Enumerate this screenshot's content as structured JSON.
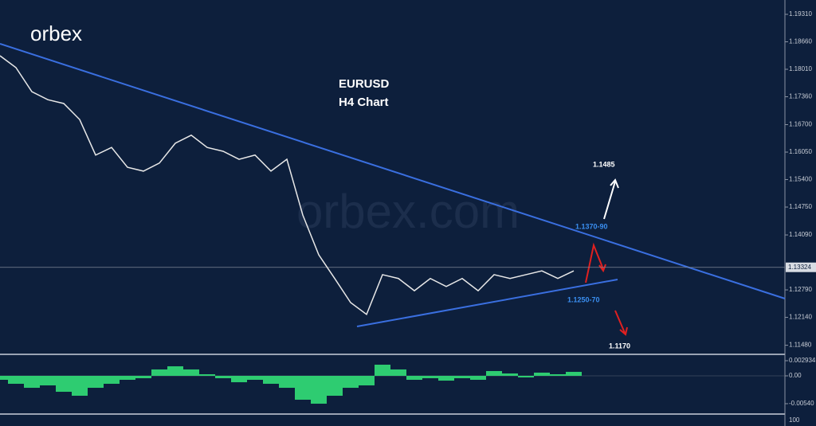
{
  "logo": "orbex",
  "watermark": "orbex.com",
  "lower_panel_label": "100",
  "chart_data": [
    {
      "type": "line",
      "title": "EURUSD",
      "subtitle": "H4 Chart",
      "categories": [
        null,
        null,
        null,
        null,
        null,
        null,
        null,
        null,
        null,
        null,
        null,
        null,
        null,
        null,
        null,
        null,
        null,
        null,
        null,
        null,
        null,
        null,
        null,
        null,
        null,
        null,
        null,
        null,
        null,
        null,
        null,
        null,
        null,
        null,
        null,
        null,
        null
      ],
      "series": [
        {
          "name": "EURUSD",
          "color": "#e8e8e8",
          "values": [
            1.1833,
            1.1805,
            1.1748,
            1.1729,
            1.172,
            1.1682,
            1.1598,
            1.1616,
            1.1569,
            1.156,
            1.1579,
            1.1626,
            1.1645,
            1.1616,
            1.1607,
            1.1588,
            1.1598,
            1.156,
            1.1588,
            1.1456,
            1.1362,
            1.1306,
            1.1249,
            1.1221,
            1.1315,
            1.1306,
            1.1277,
            1.1306,
            1.1287,
            1.1306,
            1.1277,
            1.1315,
            1.1306,
            1.1315,
            1.1324,
            1.1306,
            1.1324
          ]
        }
      ],
      "ylim": [
        1.11265,
        1.19649
      ],
      "yticks": [
        {
          "value": 1.1931,
          "label": "1.19310"
        },
        {
          "value": 1.1866,
          "label": "1.18660"
        },
        {
          "value": 1.1801,
          "label": "1.18010"
        },
        {
          "value": 1.1736,
          "label": "1.17360"
        },
        {
          "value": 1.167,
          "label": "1.16700"
        },
        {
          "value": 1.1605,
          "label": "1.16050"
        },
        {
          "value": 1.154,
          "label": "1.15400"
        },
        {
          "value": 1.1475,
          "label": "1.14750"
        },
        {
          "value": 1.1409,
          "label": "1.14090"
        },
        {
          "value": 1.1279,
          "label": "1.12790"
        },
        {
          "value": 1.1214,
          "label": "1.12140"
        },
        {
          "value": 1.1148,
          "label": "1.11480"
        }
      ],
      "current_price": 1.13324,
      "annotations": [
        "1.1485",
        "1.1370-90",
        "1.1250-70",
        "1.1170"
      ]
    },
    {
      "type": "histogram-oscillator",
      "color": "#2ecc71",
      "values": [
        -0.00077,
        -0.00154,
        -0.00232,
        -0.00185,
        -0.00309,
        -0.00386,
        -0.00232,
        -0.00154,
        -0.00077,
        -0.00046,
        0.00124,
        0.00185,
        0.00124,
        0.00031,
        -0.00046,
        -0.00124,
        -0.00077,
        -0.00154,
        -0.00232,
        -0.00463,
        -0.0054,
        -0.00386,
        -0.00232,
        -0.00185,
        0.00216,
        0.00124,
        -0.00077,
        -0.00046,
        -0.00093,
        -0.00046,
        -0.00077,
        0.00093,
        0.00046,
        -0.00031,
        0.00062,
        0.00031,
        0.00077
      ],
      "ylim": [
        -0.00741,
        0.00386
      ],
      "yticks": [
        0.002934,
        {
          "value": 0,
          "label": "0.00"
        },
        {
          "value": -0.0054,
          "label": "-0.00540"
        }
      ]
    }
  ]
}
